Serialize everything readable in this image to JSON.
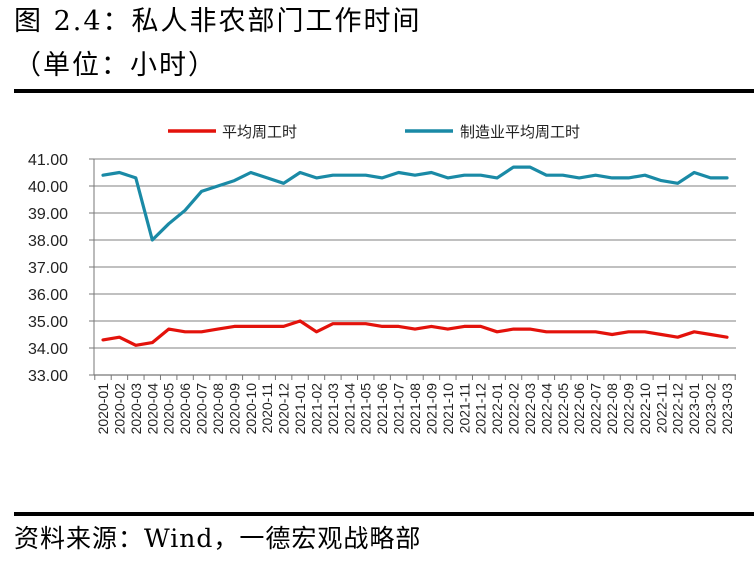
{
  "header": {
    "title": "图 2.4：私人非农部门工作时间",
    "subtitle": "（单位：小时）"
  },
  "footer": {
    "source": "资料来源：Wind，一德宏观战略部"
  },
  "chart_data": {
    "type": "line",
    "title": "图 2.4：私人非农部门工作时间",
    "subtitle": "（单位：小时）",
    "xlabel": "",
    "ylabel": "",
    "ylim": [
      33,
      41
    ],
    "yticks": [
      "41.00",
      "40.00",
      "39.00",
      "38.00",
      "37.00",
      "36.00",
      "35.00",
      "34.00",
      "33.00"
    ],
    "grid": true,
    "legend_position": "top",
    "categories": [
      "2020-01",
      "2020-02",
      "2020-03",
      "2020-04",
      "2020-05",
      "2020-06",
      "2020-07",
      "2020-08",
      "2020-09",
      "2020-10",
      "2020-11",
      "2020-12",
      "2021-01",
      "2021-02",
      "2021-03",
      "2021-04",
      "2021-05",
      "2021-06",
      "2021-07",
      "2021-08",
      "2021-09",
      "2021-10",
      "2021-11",
      "2021-12",
      "2022-01",
      "2022-02",
      "2022-03",
      "2022-04",
      "2022-05",
      "2022-06",
      "2022-07",
      "2022-08",
      "2022-09",
      "2022-10",
      "2022-11",
      "2022-12",
      "2023-01",
      "2023-02",
      "2023-03"
    ],
    "series": [
      {
        "name": "平均周工时",
        "color": "#e3120b",
        "values": [
          34.3,
          34.4,
          34.1,
          34.2,
          34.7,
          34.6,
          34.6,
          34.7,
          34.8,
          34.8,
          34.8,
          34.8,
          35.0,
          34.6,
          34.9,
          34.9,
          34.9,
          34.8,
          34.8,
          34.7,
          34.8,
          34.7,
          34.8,
          34.8,
          34.6,
          34.7,
          34.7,
          34.6,
          34.6,
          34.6,
          34.6,
          34.5,
          34.6,
          34.6,
          34.5,
          34.4,
          34.6,
          34.5,
          34.4
        ]
      },
      {
        "name": "制造业平均周工时",
        "color": "#1a8aa6",
        "values": [
          40.4,
          40.5,
          40.3,
          38.0,
          38.6,
          39.1,
          39.8,
          40.0,
          40.2,
          40.5,
          40.3,
          40.1,
          40.5,
          40.3,
          40.4,
          40.4,
          40.4,
          40.3,
          40.5,
          40.4,
          40.5,
          40.3,
          40.4,
          40.4,
          40.3,
          40.7,
          40.7,
          40.4,
          40.4,
          40.3,
          40.4,
          40.3,
          40.3,
          40.4,
          40.2,
          40.1,
          40.5,
          40.3,
          40.3
        ]
      }
    ]
  }
}
